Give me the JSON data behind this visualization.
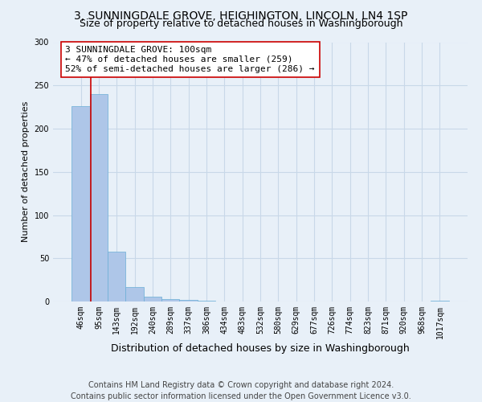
{
  "title": "3, SUNNINGDALE GROVE, HEIGHINGTON, LINCOLN, LN4 1SP",
  "subtitle": "Size of property relative to detached houses in Washingborough",
  "xlabel": "Distribution of detached houses by size in Washingborough",
  "ylabel": "Number of detached properties",
  "footer_lines": [
    "Contains HM Land Registry data © Crown copyright and database right 2024.",
    "Contains public sector information licensed under the Open Government Licence v3.0."
  ],
  "bin_labels": [
    "46sqm",
    "95sqm",
    "143sqm",
    "192sqm",
    "240sqm",
    "289sqm",
    "337sqm",
    "386sqm",
    "434sqm",
    "483sqm",
    "532sqm",
    "580sqm",
    "629sqm",
    "677sqm",
    "726sqm",
    "774sqm",
    "823sqm",
    "871sqm",
    "920sqm",
    "968sqm",
    "1017sqm"
  ],
  "bar_values": [
    226,
    240,
    58,
    17,
    6,
    3,
    2,
    1,
    0,
    0,
    0,
    0,
    0,
    0,
    0,
    0,
    0,
    0,
    0,
    0,
    1
  ],
  "bar_color": "#aec6e8",
  "bar_edge_color": "#6aaed6",
  "vline_color": "#cc0000",
  "vline_x": 0.57,
  "annotation_text": "3 SUNNINGDALE GROVE: 100sqm\n← 47% of detached houses are smaller (259)\n52% of semi-detached houses are larger (286) →",
  "annotation_box_color": "#ffffff",
  "annotation_box_edge_color": "#cc0000",
  "ylim": [
    0,
    300
  ],
  "yticks": [
    0,
    50,
    100,
    150,
    200,
    250,
    300
  ],
  "grid_color": "#c8d8e8",
  "background_color": "#e8f0f8",
  "title_fontsize": 10,
  "subtitle_fontsize": 9,
  "xlabel_fontsize": 9,
  "ylabel_fontsize": 8,
  "tick_fontsize": 7,
  "annotation_fontsize": 8,
  "footer_fontsize": 7
}
